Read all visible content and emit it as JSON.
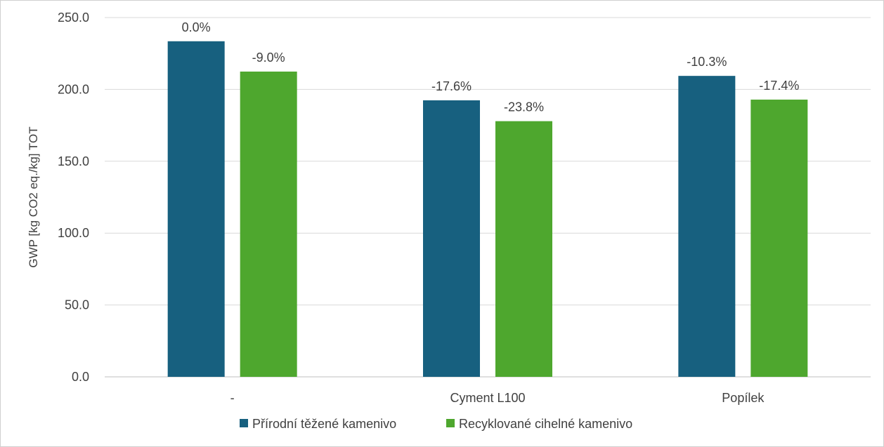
{
  "chart_data": {
    "type": "bar",
    "title": "",
    "xlabel": "",
    "ylabel": "GWP [kg CO2 eq./kg] TOT",
    "ylim": [
      0,
      250
    ],
    "yticks": [
      0,
      50,
      100,
      150,
      200,
      250
    ],
    "ytick_labels": [
      "0.0",
      "50.0",
      "100.0",
      "150.0",
      "200.0",
      "250.0"
    ],
    "grid": true,
    "legend_position": "bottom",
    "categories": [
      "-",
      "Cyment L100",
      "Popílek"
    ],
    "series": [
      {
        "name": "Přírodní těžené kamenivo",
        "color": "#17607F",
        "values": [
          233.5,
          192.4,
          209.4
        ],
        "labels": [
          "0.0%",
          "-17.6%",
          "-10.3%"
        ]
      },
      {
        "name": "Recyklované cihelné kamenivo",
        "color": "#4EA72E",
        "values": [
          212.4,
          177.9,
          192.9
        ],
        "labels": [
          "-9.0%",
          "-23.8%",
          "-17.4%"
        ]
      }
    ]
  }
}
